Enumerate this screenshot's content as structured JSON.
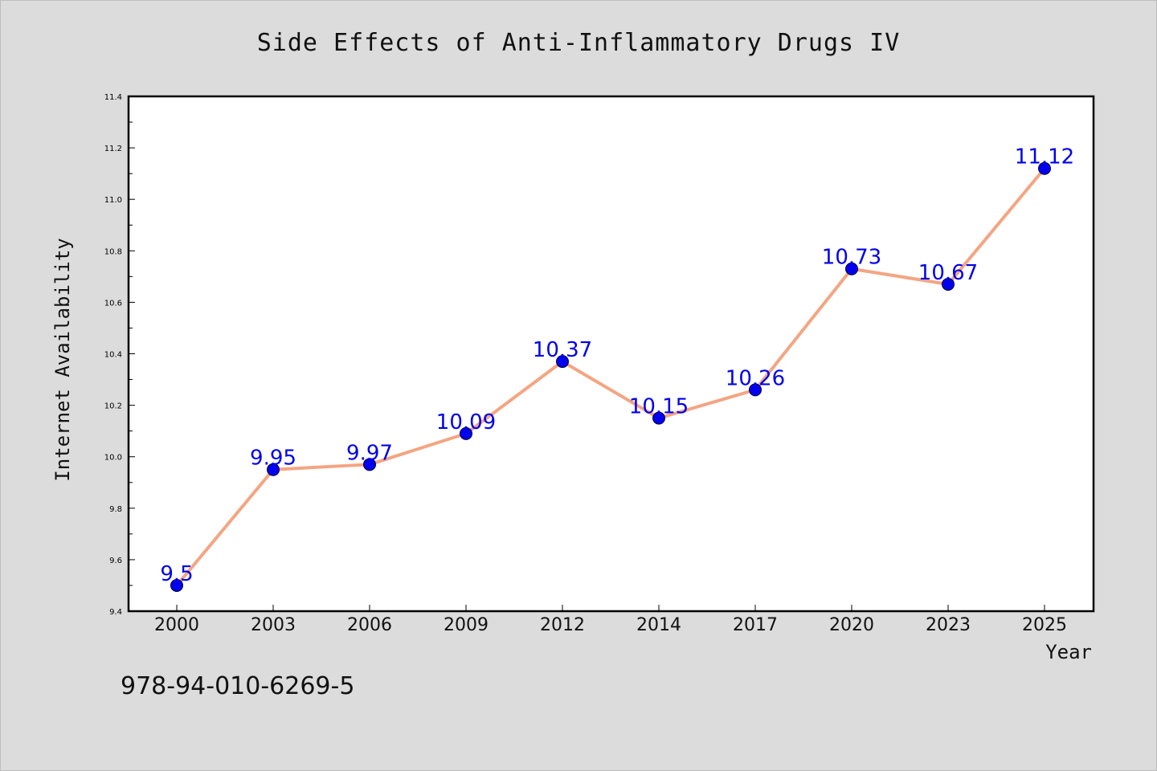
{
  "chart_data": {
    "type": "line",
    "title": "Side Effects of Anti-Inflammatory Drugs IV",
    "xlabel": "Year",
    "ylabel": "Internet Availability",
    "categories": [
      "2000",
      "2003",
      "2006",
      "2009",
      "2012",
      "2014",
      "2017",
      "2020",
      "2023",
      "2025"
    ],
    "values": [
      9.5,
      9.95,
      9.97,
      10.09,
      10.37,
      10.15,
      10.26,
      10.73,
      10.67,
      11.12
    ],
    "data_labels": [
      "9.5",
      "9.95",
      "9.97",
      "10.09",
      "10.37",
      "10.15",
      "10.26",
      "10.73",
      "10.67",
      "11.12"
    ],
    "ylim": [
      9.4,
      11.4
    ],
    "y_ticks": [
      "9.4",
      "9.6",
      "9.8",
      "10.0",
      "10.2",
      "10.4",
      "10.6",
      "10.8",
      "11.0",
      "11.2",
      "11.4"
    ],
    "grid": false,
    "legend": "none",
    "line_color": "#f4a582",
    "marker_color": "#0000ee",
    "label_color": "#0000ee"
  },
  "annotation": "978-94-010-6269-5"
}
